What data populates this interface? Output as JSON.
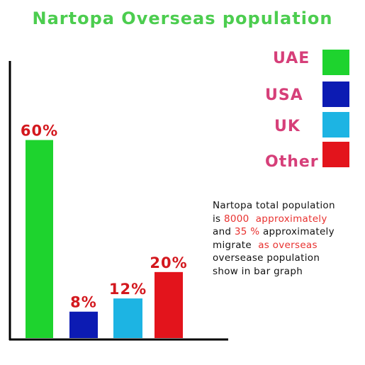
{
  "colors": {
    "title": "#4ccd4f",
    "legend_text": "#d63f79",
    "value_label": "#d3181e",
    "axis": "#000000",
    "note_highlight": "#e8312f"
  },
  "chart_data": {
    "type": "bar",
    "title": "Nartopa Overseas population",
    "categories": [
      "UAE",
      "USA",
      "UK",
      "Other"
    ],
    "values": [
      60,
      8,
      12,
      20
    ],
    "value_labels": [
      "60%",
      "8%",
      "12%",
      "20%"
    ],
    "colors": [
      "#1ed32e",
      "#0c1bb3",
      "#1db4e3",
      "#e3141c"
    ],
    "ylim": [
      0,
      70
    ],
    "xlabel": "",
    "ylabel": "",
    "grid": false,
    "legend_position": "top-right"
  },
  "legend": [
    {
      "label": "UAE",
      "color": "#1ed32e"
    },
    {
      "label": "USA",
      "color": "#0c1bb3"
    },
    {
      "label": "UK",
      "color": "#1db4e3"
    },
    {
      "label": "Other",
      "color": "#e3141c"
    }
  ],
  "note": {
    "line1": "Nartopa total population",
    "line2_a": "is ",
    "line2_b": "8000  approximately",
    "line3_a": "and ",
    "line3_b": "35 %",
    "line3_c": " approximately",
    "line4_a": "migrate  ",
    "line4_b": "as overseas",
    "line5": "oversease population",
    "line6": "show in bar graph"
  }
}
